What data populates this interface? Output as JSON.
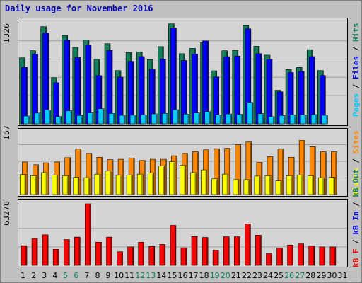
{
  "title": "Daily usage for November 2016",
  "chart_data": [
    {
      "type": "bar",
      "panel": "pages-files-hits",
      "ymax_label": "1326",
      "ylim": [
        0,
        1326
      ],
      "categories": [
        "1",
        "2",
        "3",
        "4",
        "5",
        "6",
        "7",
        "8",
        "9",
        "10",
        "11",
        "12",
        "13",
        "14",
        "15",
        "16",
        "17",
        "18",
        "19",
        "20",
        "21",
        "22",
        "23",
        "24",
        "25",
        "26",
        "27",
        "28",
        "29",
        "30",
        "31"
      ],
      "series": [
        {
          "name": "Hits",
          "color": "#157f5b",
          "values": [
            865,
            958,
            1273,
            604,
            1155,
            1002,
            1100,
            845,
            1050,
            698,
            935,
            942,
            840,
            1012,
            1310,
            919,
            988,
            1062,
            695,
            958,
            963,
            1287,
            1017,
            900,
            440,
            711,
            739,
            972,
            698,
            0,
            0
          ]
        },
        {
          "name": "Files",
          "color": "#0000ff",
          "values": [
            740,
            915,
            1192,
            539,
            1098,
            868,
            1033,
            632,
            963,
            612,
            819,
            881,
            715,
            849,
            1255,
            830,
            915,
            1087,
            614,
            880,
            888,
            1244,
            920,
            847,
            420,
            672,
            687,
            881,
            634,
            0,
            0
          ]
        },
        {
          "name": "Pages",
          "color": "#00ccff",
          "values": [
            102,
            140,
            179,
            95,
            170,
            108,
            143,
            197,
            135,
            111,
            112,
            116,
            130,
            136,
            185,
            127,
            142,
            160,
            117,
            129,
            124,
            279,
            133,
            94,
            109,
            117,
            117,
            120,
            111,
            0,
            0
          ]
        }
      ]
    },
    {
      "type": "bar",
      "panel": "visits-sites",
      "ymax_label": "157",
      "ylim": [
        0,
        157
      ],
      "categories": [
        "1",
        "2",
        "3",
        "4",
        "5",
        "6",
        "7",
        "8",
        "9",
        "10",
        "11",
        "12",
        "13",
        "14",
        "15",
        "16",
        "17",
        "18",
        "19",
        "20",
        "21",
        "22",
        "23",
        "24",
        "25",
        "26",
        "27",
        "28",
        "29",
        "30",
        "31"
      ],
      "series": [
        {
          "name": "Sites",
          "color": "#ff8800",
          "values": [
            83,
            76,
            81,
            83,
            94,
            116,
            105,
            95,
            89,
            90,
            93,
            87,
            90,
            90,
            99,
            105,
            109,
            114,
            117,
            118,
            127,
            134,
            82,
            97,
            116,
            95,
            138,
            122,
            109,
            109,
            0
          ]
        },
        {
          "name": "Visits",
          "color": "#ffff00",
          "values": [
            51,
            48,
            56,
            50,
            48,
            44,
            43,
            52,
            60,
            49,
            50,
            52,
            55,
            73,
            84,
            75,
            56,
            63,
            40,
            52,
            38,
            38,
            47,
            48,
            35,
            48,
            50,
            48,
            43,
            44,
            0
          ]
        }
      ]
    },
    {
      "type": "bar",
      "panel": "kbytes",
      "ymax_label": "63278",
      "ylim": [
        0,
        63278
      ],
      "categories": [
        "1",
        "2",
        "3",
        "4",
        "5",
        "6",
        "7",
        "8",
        "9",
        "10",
        "11",
        "12",
        "13",
        "14",
        "15",
        "16",
        "17",
        "18",
        "19",
        "20",
        "21",
        "22",
        "23",
        "24",
        "25",
        "26",
        "27",
        "28",
        "29",
        "30",
        "31"
      ],
      "series": [
        {
          "name": "kB F",
          "color": "#ff0000",
          "values": [
            20200,
            27700,
            31400,
            16500,
            26500,
            29000,
            63278,
            23800,
            29000,
            14000,
            19000,
            23800,
            19400,
            21500,
            41100,
            18100,
            29600,
            28700,
            15500,
            29400,
            29400,
            42700,
            31000,
            12000,
            17800,
            20900,
            22100,
            19800,
            19000,
            19000,
            0
          ]
        }
      ]
    }
  ],
  "legends": {
    "top": [
      {
        "text": "Pages",
        "color": "#00ccff"
      },
      {
        "text": " / ",
        "color": "#000000"
      },
      {
        "text": "Files",
        "color": "#0000ff"
      },
      {
        "text": " / ",
        "color": "#000000"
      },
      {
        "text": "Hits",
        "color": "#157f5b"
      }
    ],
    "middle": [
      {
        "text": "Visits",
        "color": "#ffff00"
      },
      {
        "text": " / ",
        "color": "#000000"
      },
      {
        "text": "Sites",
        "color": "#ff8800"
      }
    ],
    "bottom": [
      {
        "text": "kB F",
        "color": "#ff0000"
      },
      {
        "text": " / ",
        "color": "#000000"
      },
      {
        "text": "kB In",
        "color": "#0000ff"
      },
      {
        "text": " / ",
        "color": "#000000"
      },
      {
        "text": "kB Out",
        "color": "#157f5b"
      }
    ]
  },
  "x_labels": [
    "1",
    "2",
    "3",
    "4",
    "5",
    "6",
    "7",
    "8",
    "9",
    "10",
    "11",
    "12",
    "13",
    "14",
    "15",
    "16",
    "17",
    "18",
    "19",
    "20",
    "21",
    "22",
    "23",
    "24",
    "25",
    "26",
    "27",
    "28",
    "29",
    "30",
    "31"
  ],
  "weekend_days": [
    5,
    6,
    12,
    13,
    19,
    20,
    26,
    27
  ],
  "weekend_color": "#00805f",
  "weekday_color": "#000000"
}
